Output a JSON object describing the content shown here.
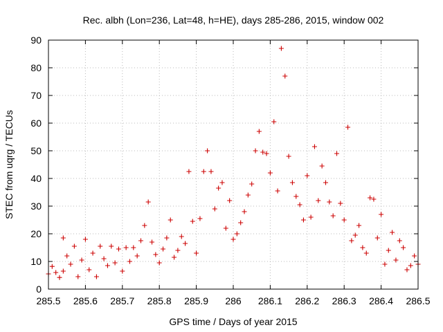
{
  "chart_data": {
    "type": "scatter",
    "title": "Rec. albh (Lon=236, Lat=48, h=HE), days 285-286, 2015, window 002",
    "xlabel": "GPS time / Days of year 2015",
    "ylabel": "STEC from uqrg / TECUs",
    "xlim": [
      285.5,
      286.5
    ],
    "ylim": [
      0,
      90
    ],
    "xticks": [
      285.5,
      285.6,
      285.7,
      285.8,
      285.9,
      286.0,
      286.1,
      286.2,
      286.3,
      286.4,
      286.5
    ],
    "xtick_labels": [
      "285.5",
      "285.6",
      "285.7",
      "285.8",
      "285.9",
      "286",
      "286.1",
      "286.2",
      "286.3",
      "286.4",
      "286.5"
    ],
    "yticks": [
      0,
      10,
      20,
      30,
      40,
      50,
      60,
      70,
      80,
      90
    ],
    "ytick_labels": [
      "0",
      "10",
      "20",
      "30",
      "40",
      "50",
      "60",
      "70",
      "80",
      "90"
    ],
    "grid": true,
    "legend": "none",
    "marker": "plus",
    "color": "#cc0000",
    "series": [
      {
        "points": [
          [
            285.5,
            5.5
          ],
          [
            285.51,
            8.2
          ],
          [
            285.52,
            6.0
          ],
          [
            285.53,
            4.2
          ],
          [
            285.54,
            18.5
          ],
          [
            285.54,
            6.5
          ],
          [
            285.55,
            12.0
          ],
          [
            285.56,
            9.0
          ],
          [
            285.57,
            15.5
          ],
          [
            285.58,
            4.5
          ],
          [
            285.59,
            10.5
          ],
          [
            285.6,
            18.0
          ],
          [
            285.61,
            7.0
          ],
          [
            285.62,
            13.0
          ],
          [
            285.63,
            4.5
          ],
          [
            285.64,
            15.5
          ],
          [
            285.65,
            11.0
          ],
          [
            285.66,
            8.5
          ],
          [
            285.67,
            15.5
          ],
          [
            285.68,
            9.5
          ],
          [
            285.69,
            14.5
          ],
          [
            285.7,
            6.5
          ],
          [
            285.71,
            15.0
          ],
          [
            285.72,
            10.0
          ],
          [
            285.73,
            15.0
          ],
          [
            285.74,
            12.0
          ],
          [
            285.75,
            17.5
          ],
          [
            285.76,
            23.0
          ],
          [
            285.77,
            31.5
          ],
          [
            285.78,
            17.0
          ],
          [
            285.79,
            12.5
          ],
          [
            285.8,
            9.5
          ],
          [
            285.81,
            14.5
          ],
          [
            285.82,
            18.5
          ],
          [
            285.83,
            25.0
          ],
          [
            285.84,
            11.5
          ],
          [
            285.85,
            14.0
          ],
          [
            285.86,
            19.0
          ],
          [
            285.87,
            16.5
          ],
          [
            285.88,
            42.5
          ],
          [
            285.89,
            24.5
          ],
          [
            285.9,
            13.0
          ],
          [
            285.91,
            25.5
          ],
          [
            285.92,
            42.5
          ],
          [
            285.93,
            50.0
          ],
          [
            285.94,
            42.5
          ],
          [
            285.95,
            29.0
          ],
          [
            285.96,
            36.5
          ],
          [
            285.97,
            38.5
          ],
          [
            285.98,
            22.0
          ],
          [
            285.99,
            32.0
          ],
          [
            286.0,
            18.0
          ],
          [
            286.01,
            20.0
          ],
          [
            286.02,
            24.0
          ],
          [
            286.03,
            28.0
          ],
          [
            286.04,
            34.0
          ],
          [
            286.05,
            38.0
          ],
          [
            286.06,
            50.0
          ],
          [
            286.07,
            57.0
          ],
          [
            286.08,
            49.5
          ],
          [
            286.09,
            49.0
          ],
          [
            286.1,
            42.0
          ],
          [
            286.11,
            60.5
          ],
          [
            286.12,
            35.5
          ],
          [
            286.13,
            87.0
          ],
          [
            286.14,
            77.0
          ],
          [
            286.15,
            48.0
          ],
          [
            286.16,
            38.5
          ],
          [
            286.17,
            33.5
          ],
          [
            286.18,
            30.5
          ],
          [
            286.19,
            25.0
          ],
          [
            286.2,
            41.0
          ],
          [
            286.21,
            26.0
          ],
          [
            286.22,
            51.5
          ],
          [
            286.23,
            32.0
          ],
          [
            286.24,
            44.5
          ],
          [
            286.25,
            38.5
          ],
          [
            286.26,
            31.5
          ],
          [
            286.27,
            26.5
          ],
          [
            286.28,
            49.0
          ],
          [
            286.29,
            31.0
          ],
          [
            286.3,
            25.0
          ],
          [
            286.31,
            58.5
          ],
          [
            286.32,
            17.5
          ],
          [
            286.33,
            19.5
          ],
          [
            286.34,
            23.0
          ],
          [
            286.35,
            15.0
          ],
          [
            286.36,
            13.0
          ],
          [
            286.37,
            33.0
          ],
          [
            286.38,
            32.5
          ],
          [
            286.39,
            18.5
          ],
          [
            286.4,
            27.0
          ],
          [
            286.41,
            9.0
          ],
          [
            286.42,
            14.0
          ],
          [
            286.43,
            20.5
          ],
          [
            286.44,
            10.5
          ],
          [
            286.45,
            17.5
          ],
          [
            286.46,
            15.0
          ],
          [
            286.47,
            7.0
          ],
          [
            286.48,
            8.5
          ],
          [
            286.49,
            12.0
          ],
          [
            286.5,
            9.0
          ]
        ]
      }
    ]
  }
}
